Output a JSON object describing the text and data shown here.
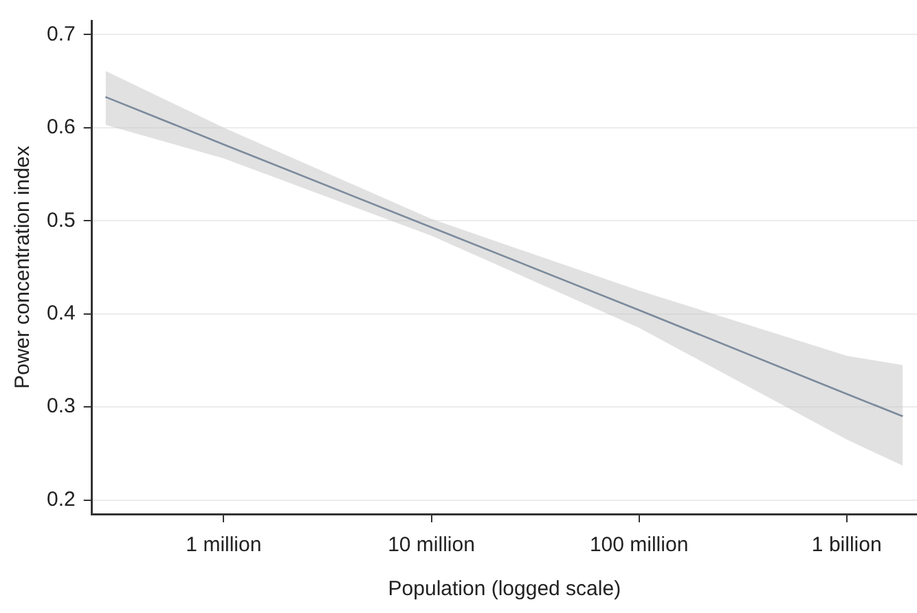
{
  "chart_data": {
    "type": "line",
    "xlabel": "Population (logged scale)",
    "ylabel": "Power concentration index",
    "log": "x",
    "grid": "y",
    "legend": false,
    "marker": "none",
    "line_style": "solid",
    "xlim": [
      232000,
      2180000000
    ],
    "ylim": [
      0.185,
      0.715
    ],
    "xticks": [
      {
        "value": 1000000,
        "label": "1 million"
      },
      {
        "value": 10000000,
        "label": "10 million"
      },
      {
        "value": 100000000,
        "label": "100 million"
      },
      {
        "value": 1000000000,
        "label": "1 billion"
      }
    ],
    "yticks": [
      {
        "value": 0.2,
        "label": "0.2"
      },
      {
        "value": 0.3,
        "label": "0.3"
      },
      {
        "value": 0.4,
        "label": "0.4"
      },
      {
        "value": 0.5,
        "label": "0.5"
      },
      {
        "value": 0.6,
        "label": "0.6"
      },
      {
        "value": 0.7,
        "label": "0.7"
      }
    ],
    "series": [
      {
        "color": "#1f3f66",
        "x": [
          270000,
          1000000,
          10000000,
          100000000,
          1000000000,
          1860000000
        ],
        "values": [
          0.633,
          0.582,
          0.493,
          0.404,
          0.314,
          0.29
        ],
        "lower": [
          0.603,
          0.567,
          0.484,
          0.385,
          0.265,
          0.237
        ],
        "upper": [
          0.661,
          0.6,
          0.502,
          0.425,
          0.355,
          0.345
        ]
      }
    ]
  }
}
